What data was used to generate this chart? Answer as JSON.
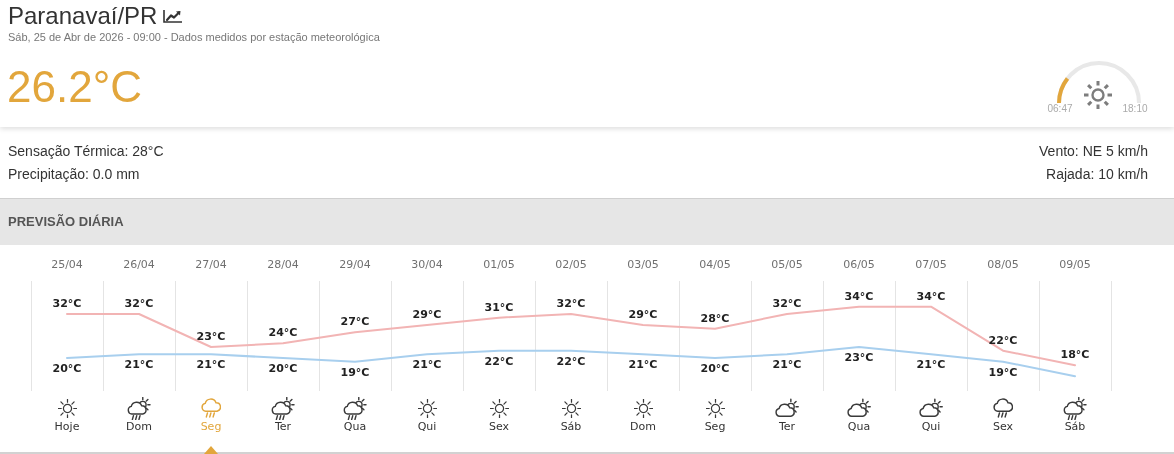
{
  "chart_data": {
    "type": "line",
    "title": "Paranavaí/PR",
    "subtitle": "Sáb, 25 de Abr de 2026 - 09:00 - Dados medidos por estação meteorológica",
    "categories": [
      "25/04",
      "26/04",
      "27/04",
      "28/04",
      "29/04",
      "30/04",
      "01/05",
      "02/05",
      "03/05",
      "04/05",
      "05/05",
      "06/05",
      "07/05",
      "08/05",
      "09/05"
    ],
    "series": [
      {
        "color": "#f2b4b4",
        "values": [
          32,
          32,
          23,
          24,
          27,
          29,
          31,
          32,
          29,
          28,
          32,
          34,
          34,
          22,
          18
        ],
        "value_labels": [
          "32°C",
          "32°C",
          "23°C",
          "24°C",
          "27°C",
          "29°C",
          "31°C",
          "32°C",
          "29°C",
          "28°C",
          "32°C",
          "34°C",
          "34°C",
          "22°C",
          "18°C"
        ]
      },
      {
        "color": "#a8cfee",
        "values": [
          20,
          21,
          21,
          20,
          19,
          21,
          22,
          22,
          21,
          20,
          21,
          23,
          21,
          19,
          15
        ],
        "value_labels": [
          "20°C",
          "21°C",
          "21°C",
          "20°C",
          "19°C",
          "21°C",
          "22°C",
          "22°C",
          "21°C",
          "20°C",
          "21°C",
          "23°C",
          "21°C",
          "19°C",
          null
        ]
      }
    ],
    "ylim": [
      11,
      41
    ],
    "tick_labels": "x",
    "grid": "x",
    "marker": "none",
    "line_style": "solid",
    "annotations": [
      "26.2°C",
      "06:47",
      "18:10",
      "Sensação Térmica: 28°C",
      "Precipitação: 0.0 mm",
      "Vento: NE 5 km/h",
      "Rajada: 10 km/h",
      "PREVISÃO DIÁRIA",
      "Hoje",
      "Dom",
      "Seg",
      "Ter",
      "Qua",
      "Qui",
      "Sex",
      "Sáb",
      "Dom",
      "Seg",
      "Ter",
      "Qua",
      "Qui",
      "Sex",
      "Sáb"
    ]
  }
}
